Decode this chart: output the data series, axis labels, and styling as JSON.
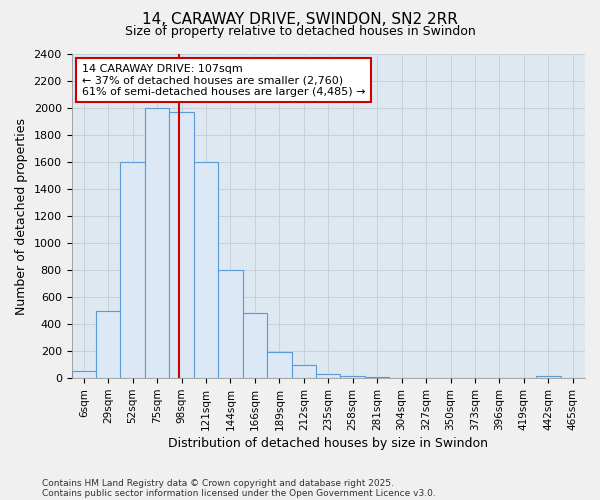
{
  "title1": "14, CARAWAY DRIVE, SWINDON, SN2 2RR",
  "title2": "Size of property relative to detached houses in Swindon",
  "xlabel": "Distribution of detached houses by size in Swindon",
  "ylabel": "Number of detached properties",
  "footnote1": "Contains HM Land Registry data © Crown copyright and database right 2025.",
  "footnote2": "Contains public sector information licensed under the Open Government Licence v3.0.",
  "annotation_line1": "14 CARAWAY DRIVE: 107sqm",
  "annotation_line2": "← 37% of detached houses are smaller (2,760)",
  "annotation_line3": "61% of semi-detached houses are larger (4,485) →",
  "bar_labels": [
    "6sqm",
    "29sqm",
    "52sqm",
    "75sqm",
    "98sqm",
    "121sqm",
    "144sqm",
    "166sqm",
    "189sqm",
    "212sqm",
    "235sqm",
    "258sqm",
    "281sqm",
    "304sqm",
    "327sqm",
    "350sqm",
    "373sqm",
    "396sqm",
    "419sqm",
    "442sqm",
    "465sqm"
  ],
  "bar_values": [
    50,
    500,
    1600,
    2000,
    1970,
    1600,
    800,
    480,
    195,
    95,
    30,
    15,
    8,
    5,
    3,
    2,
    1,
    0,
    0,
    15,
    0
  ],
  "bar_color": "#dce8f5",
  "bar_edge_color": "#5b9bd5",
  "bar_edge_width": 0.8,
  "vline_color": "#cc0000",
  "grid_color": "#c8d0dc",
  "background_color": "#dde8f0",
  "fig_background": "#f0f0f0",
  "ylim": [
    0,
    2400
  ],
  "yticks": [
    0,
    200,
    400,
    600,
    800,
    1000,
    1200,
    1400,
    1600,
    1800,
    2000,
    2200,
    2400
  ],
  "annotation_box_color": "#ffffff",
  "annotation_box_edge": "#cc0000",
  "property_sqm": 107,
  "bin_starts": [
    6,
    29,
    52,
    75,
    98,
    121,
    144,
    166,
    189,
    212,
    235,
    258,
    281,
    304,
    327,
    350,
    373,
    396,
    419,
    442,
    465
  ]
}
